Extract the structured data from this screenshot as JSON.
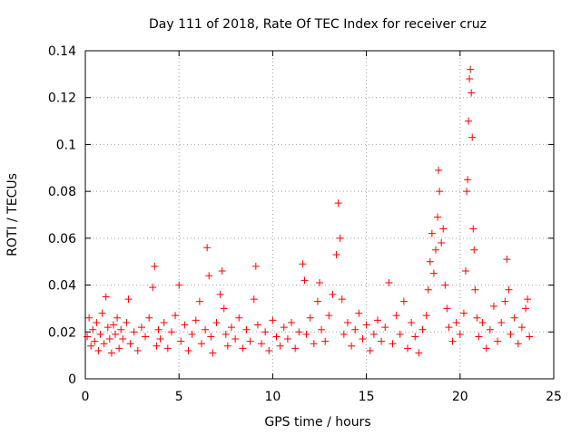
{
  "chart_data": {
    "type": "scatter",
    "title": "Day 111 of 2018, Rate Of TEC Index for receiver cruz",
    "xlabel": "GPS time / hours",
    "ylabel": "ROTI / TECUs",
    "xlim": [
      0,
      25
    ],
    "ylim": [
      0,
      0.14
    ],
    "x_ticks": [
      0,
      5,
      10,
      15,
      20,
      25
    ],
    "x_tick_labels": [
      "0",
      "5",
      "10",
      "15",
      "20",
      "25"
    ],
    "y_ticks": [
      0,
      0.02,
      0.04,
      0.06,
      0.08,
      0.1,
      0.12,
      0.14
    ],
    "y_tick_labels": [
      "0",
      "0.02",
      "0.04",
      "0.06",
      "0.08",
      "0.1",
      "0.12",
      "0.14"
    ],
    "grid": true,
    "marker": "+",
    "color": "#ff0000",
    "series": [
      {
        "name": "ROTI",
        "points": [
          [
            0.1,
            0.018
          ],
          [
            0.2,
            0.026
          ],
          [
            0.3,
            0.014
          ],
          [
            0.4,
            0.021
          ],
          [
            0.5,
            0.016
          ],
          [
            0.6,
            0.024
          ],
          [
            0.7,
            0.012
          ],
          [
            0.8,
            0.019
          ],
          [
            0.9,
            0.028
          ],
          [
            1.0,
            0.015
          ],
          [
            1.1,
            0.035
          ],
          [
            1.2,
            0.022
          ],
          [
            1.3,
            0.017
          ],
          [
            1.4,
            0.011
          ],
          [
            1.5,
            0.023
          ],
          [
            1.6,
            0.019
          ],
          [
            1.7,
            0.026
          ],
          [
            1.8,
            0.013
          ],
          [
            1.9,
            0.021
          ],
          [
            2.0,
            0.017
          ],
          [
            2.2,
            0.024
          ],
          [
            2.3,
            0.034
          ],
          [
            2.4,
            0.015
          ],
          [
            2.6,
            0.02
          ],
          [
            2.8,
            0.012
          ],
          [
            3.0,
            0.022
          ],
          [
            3.2,
            0.018
          ],
          [
            3.4,
            0.026
          ],
          [
            3.6,
            0.039
          ],
          [
            3.7,
            0.048
          ],
          [
            3.8,
            0.014
          ],
          [
            3.9,
            0.021
          ],
          [
            4.0,
            0.017
          ],
          [
            4.2,
            0.024
          ],
          [
            4.4,
            0.013
          ],
          [
            4.6,
            0.02
          ],
          [
            4.8,
            0.027
          ],
          [
            5.0,
            0.04
          ],
          [
            5.1,
            0.016
          ],
          [
            5.3,
            0.023
          ],
          [
            5.5,
            0.012
          ],
          [
            5.7,
            0.019
          ],
          [
            5.9,
            0.025
          ],
          [
            6.1,
            0.033
          ],
          [
            6.2,
            0.015
          ],
          [
            6.4,
            0.021
          ],
          [
            6.5,
            0.056
          ],
          [
            6.6,
            0.044
          ],
          [
            6.7,
            0.018
          ],
          [
            6.8,
            0.011
          ],
          [
            7.0,
            0.024
          ],
          [
            7.2,
            0.036
          ],
          [
            7.3,
            0.046
          ],
          [
            7.4,
            0.03
          ],
          [
            7.5,
            0.019
          ],
          [
            7.6,
            0.014
          ],
          [
            7.8,
            0.022
          ],
          [
            8.0,
            0.017
          ],
          [
            8.2,
            0.026
          ],
          [
            8.4,
            0.013
          ],
          [
            8.6,
            0.021
          ],
          [
            8.8,
            0.016
          ],
          [
            9.0,
            0.034
          ],
          [
            9.1,
            0.048
          ],
          [
            9.2,
            0.023
          ],
          [
            9.4,
            0.015
          ],
          [
            9.6,
            0.02
          ],
          [
            9.8,
            0.012
          ],
          [
            10.0,
            0.025
          ],
          [
            10.2,
            0.018
          ],
          [
            10.4,
            0.014
          ],
          [
            10.6,
            0.022
          ],
          [
            10.8,
            0.017
          ],
          [
            11.0,
            0.024
          ],
          [
            11.2,
            0.013
          ],
          [
            11.4,
            0.02
          ],
          [
            11.6,
            0.049
          ],
          [
            11.7,
            0.042
          ],
          [
            11.8,
            0.019
          ],
          [
            12.0,
            0.026
          ],
          [
            12.2,
            0.015
          ],
          [
            12.4,
            0.033
          ],
          [
            12.5,
            0.041
          ],
          [
            12.6,
            0.021
          ],
          [
            12.8,
            0.016
          ],
          [
            13.0,
            0.027
          ],
          [
            13.2,
            0.036
          ],
          [
            13.4,
            0.053
          ],
          [
            13.5,
            0.075
          ],
          [
            13.6,
            0.06
          ],
          [
            13.7,
            0.034
          ],
          [
            13.8,
            0.019
          ],
          [
            14.0,
            0.024
          ],
          [
            14.2,
            0.014
          ],
          [
            14.4,
            0.021
          ],
          [
            14.6,
            0.028
          ],
          [
            14.8,
            0.017
          ],
          [
            15.0,
            0.023
          ],
          [
            15.2,
            0.012
          ],
          [
            15.4,
            0.019
          ],
          [
            15.6,
            0.025
          ],
          [
            15.8,
            0.016
          ],
          [
            16.0,
            0.022
          ],
          [
            16.2,
            0.041
          ],
          [
            16.4,
            0.015
          ],
          [
            16.6,
            0.027
          ],
          [
            16.8,
            0.019
          ],
          [
            17.0,
            0.033
          ],
          [
            17.2,
            0.013
          ],
          [
            17.4,
            0.024
          ],
          [
            17.6,
            0.018
          ],
          [
            17.8,
            0.011
          ],
          [
            18.0,
            0.021
          ],
          [
            18.2,
            0.027
          ],
          [
            18.3,
            0.038
          ],
          [
            18.4,
            0.05
          ],
          [
            18.5,
            0.062
          ],
          [
            18.6,
            0.045
          ],
          [
            18.7,
            0.055
          ],
          [
            18.8,
            0.069
          ],
          [
            18.85,
            0.089
          ],
          [
            18.9,
            0.08
          ],
          [
            19.0,
            0.058
          ],
          [
            19.1,
            0.064
          ],
          [
            19.2,
            0.04
          ],
          [
            19.3,
            0.03
          ],
          [
            19.4,
            0.022
          ],
          [
            19.6,
            0.016
          ],
          [
            19.8,
            0.024
          ],
          [
            20.0,
            0.019
          ],
          [
            20.2,
            0.028
          ],
          [
            20.3,
            0.046
          ],
          [
            20.35,
            0.08
          ],
          [
            20.4,
            0.085
          ],
          [
            20.45,
            0.11
          ],
          [
            20.5,
            0.128
          ],
          [
            20.55,
            0.132
          ],
          [
            20.6,
            0.122
          ],
          [
            20.65,
            0.103
          ],
          [
            20.7,
            0.064
          ],
          [
            20.75,
            0.055
          ],
          [
            20.8,
            0.038
          ],
          [
            20.9,
            0.026
          ],
          [
            21.0,
            0.018
          ],
          [
            21.2,
            0.024
          ],
          [
            21.4,
            0.013
          ],
          [
            21.6,
            0.021
          ],
          [
            21.8,
            0.031
          ],
          [
            22.0,
            0.016
          ],
          [
            22.2,
            0.024
          ],
          [
            22.4,
            0.033
          ],
          [
            22.5,
            0.051
          ],
          [
            22.6,
            0.038
          ],
          [
            22.7,
            0.019
          ],
          [
            22.9,
            0.026
          ],
          [
            23.1,
            0.015
          ],
          [
            23.3,
            0.022
          ],
          [
            23.5,
            0.03
          ],
          [
            23.6,
            0.034
          ],
          [
            23.7,
            0.018
          ]
        ]
      }
    ]
  }
}
